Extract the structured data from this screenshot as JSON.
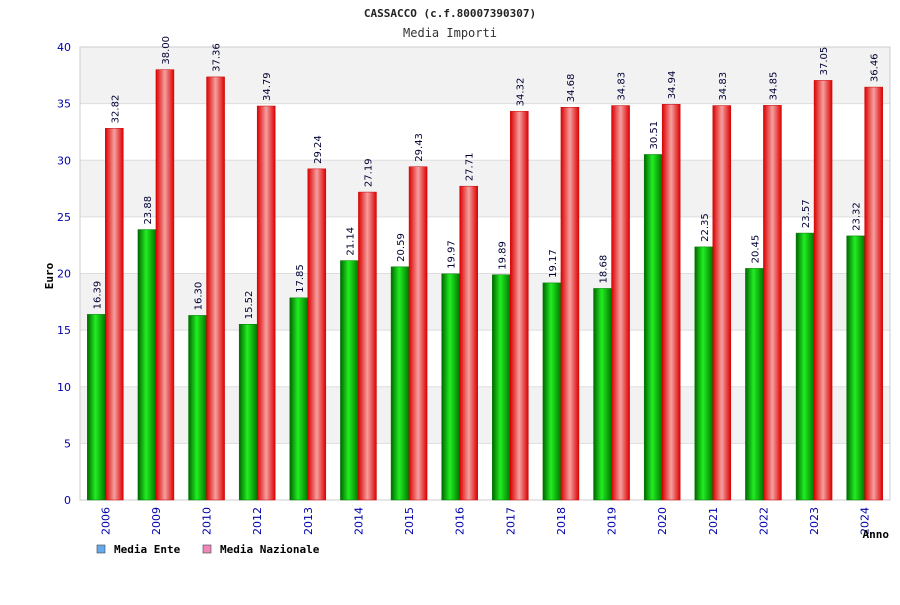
{
  "colors": {
    "ente": "#00aa00",
    "nazionale": "#ee1111",
    "legend_ente": "#66aaee",
    "legend_nazionale": "#ee88bb",
    "tick_text": "#0000aa",
    "band": "#f2f2f2",
    "grid": "#dddddd"
  },
  "chart_data": {
    "type": "bar",
    "title": "CASSACCO (c.f.80007390307)",
    "subtitle": "Media Importi",
    "ylabel": "Euro",
    "xlabel": "Anno",
    "ylim": [
      0,
      40
    ],
    "yticks": [
      0,
      5,
      10,
      15,
      20,
      25,
      30,
      35,
      40
    ],
    "grid": true,
    "legend_position": "bottom-left",
    "categories": [
      "2006",
      "2009",
      "2010",
      "2012",
      "2013",
      "2014",
      "2015",
      "2016",
      "2017",
      "2018",
      "2019",
      "2020",
      "2021",
      "2022",
      "2023",
      "2024"
    ],
    "series": [
      {
        "name": "Media Ente",
        "values": [
          16.39,
          23.88,
          16.3,
          15.52,
          17.85,
          21.14,
          20.59,
          19.97,
          19.89,
          19.17,
          18.68,
          30.51,
          22.35,
          20.45,
          23.57,
          23.32
        ],
        "labels": [
          "16.39",
          "23.88",
          "16.30",
          "15.52",
          "17.85",
          "21.14",
          "20.59",
          "19.97",
          "19.89",
          "19.17",
          "18.68",
          "30.51",
          "22.35",
          "20.45",
          "23.57",
          "23.32"
        ]
      },
      {
        "name": "Media Nazionale",
        "values": [
          32.82,
          38.0,
          37.36,
          34.79,
          29.24,
          27.19,
          29.43,
          27.71,
          34.32,
          34.68,
          34.83,
          34.94,
          34.83,
          34.85,
          37.05,
          36.46
        ],
        "labels": [
          "32.82",
          "38.00",
          "37.36",
          "34.79",
          "29.24",
          "27.19",
          "29.43",
          "27.71",
          "34.32",
          "34.68",
          "34.83",
          "34.94",
          "34.83",
          "34.85",
          "37.05",
          "36.46"
        ]
      }
    ]
  }
}
